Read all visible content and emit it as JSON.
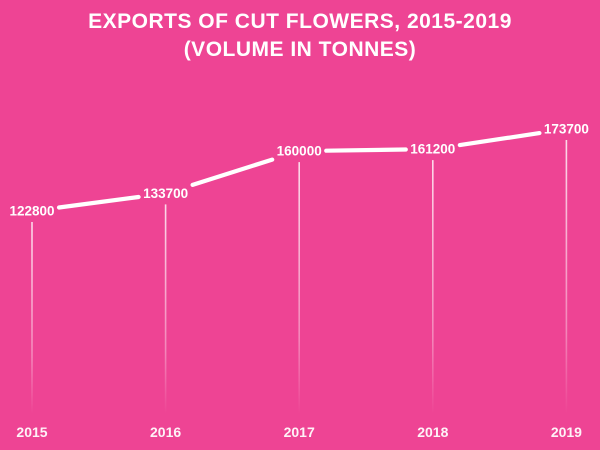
{
  "chart_data": {
    "type": "line",
    "title": "EXPORTS OF CUT FLOWERS, 2015-2019 (VOLUME IN TONNES)",
    "title_line1": "EXPORTS OF CUT FLOWERS, 2015-2019",
    "title_line2": "(VOLUME IN TONNES)",
    "categories": [
      "2015",
      "2016",
      "2017",
      "2018",
      "2019"
    ],
    "values": [
      122800,
      133700,
      160000,
      161200,
      173700
    ],
    "value_labels": [
      "122800",
      "133700",
      "160000",
      "161200",
      "173700"
    ],
    "xlabel": "",
    "ylabel": "",
    "axes_shown": false,
    "grid": false,
    "legend": "none",
    "value_labels_shown": true,
    "colors": {
      "background": "#EE4494",
      "line": "#FFFFFF",
      "text": "#FFFFFF",
      "drop_line": "#FFFFFF"
    }
  }
}
